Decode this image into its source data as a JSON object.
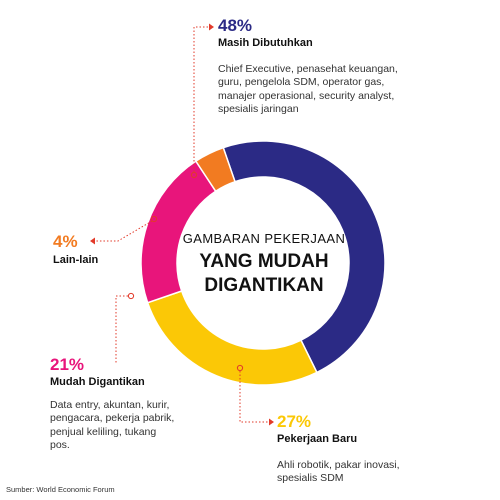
{
  "chart_data": {
    "type": "pie",
    "title_line1": "GAMBARAN PEKERJAAN",
    "title_line2": "YANG MUDAH",
    "title_line3": "DIGANTIKAN",
    "segments": [
      {
        "percent_label": "48%",
        "value": 48,
        "category": "Masih Dibutuhkan",
        "color": "#2b2a85",
        "description": "Chief Executive, penasehat keuangan, guru, pengelola SDM, operator gas, manajer operasional, security analyst, spesialis jaringan"
      },
      {
        "percent_label": "27%",
        "value": 27,
        "category": "Pekerjaan Baru",
        "color": "#fbc806",
        "description": "Ahli robotik, pakar inovasi, spesialis SDM"
      },
      {
        "percent_label": "21%",
        "value": 21,
        "category": "Mudah Digantikan",
        "color": "#e8157b",
        "description": "Data entry, akuntan, kurir, pengacara, pekerja pabrik, penjual keliling, tukang pos."
      },
      {
        "percent_label": "4%",
        "value": 4,
        "category": "Lain-lain",
        "color": "#f27b21",
        "description": ""
      }
    ],
    "label_color": "#e23a2a"
  },
  "source": "Sumber: World Economic Forum"
}
